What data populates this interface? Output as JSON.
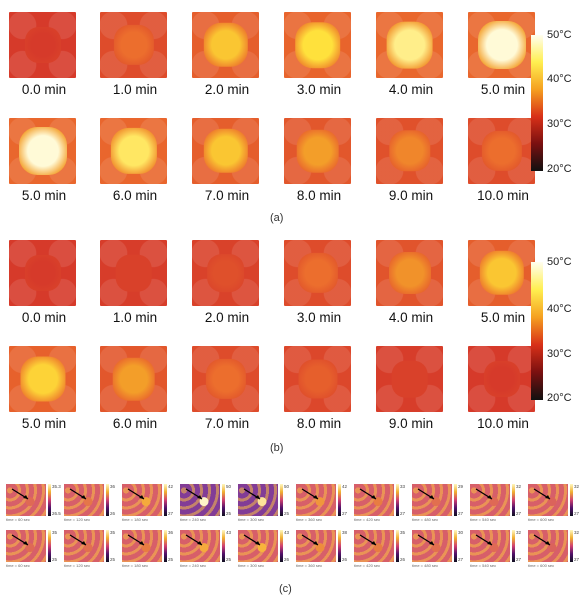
{
  "panel_a": {
    "row1": [
      "0.0 min",
      "1.0 min",
      "2.0 min",
      "3.0 min",
      "4.0 min",
      "5.0 min"
    ],
    "row2": [
      "5.0 min",
      "6.0 min",
      "7.0 min",
      "8.0 min",
      "9.0 min",
      "10.0 min"
    ],
    "intensity_row1": [
      0.0,
      0.35,
      0.7,
      0.8,
      0.9,
      1.0
    ],
    "intensity_row2": [
      1.0,
      0.85,
      0.7,
      0.55,
      0.45,
      0.35
    ],
    "colorbar": [
      "50°C",
      "40°C",
      "30°C",
      "20°C"
    ],
    "caption": "(a)"
  },
  "panel_b": {
    "row1": [
      "0.0 min",
      "1.0 min",
      "2.0 min",
      "3.0 min",
      "4.0 min",
      "5.0 min"
    ],
    "row2": [
      "5.0 min",
      "6.0 min",
      "7.0 min",
      "8.0 min",
      "9.0 min",
      "10.0 min"
    ],
    "intensity_row1": [
      0.0,
      0.05,
      0.15,
      0.35,
      0.5,
      0.7
    ],
    "intensity_row2": [
      0.75,
      0.55,
      0.35,
      0.25,
      0.05,
      0.0
    ],
    "colorbar": [
      "50°C",
      "40°C",
      "30°C",
      "20°C"
    ],
    "caption": "(b)"
  },
  "panel_c": {
    "caption": "(c)",
    "row1": [
      {
        "t": "time = 60 sec",
        "hi": "35.3",
        "lo": "26.5"
      },
      {
        "t": "time = 120 sec",
        "hi": "36",
        "lo": "26"
      },
      {
        "t": "time = 180 sec",
        "hi": "42",
        "lo": "27"
      },
      {
        "t": "time = 240 sec",
        "hi": "50",
        "lo": "25"
      },
      {
        "t": "time = 300 sec",
        "hi": "50",
        "lo": "25"
      },
      {
        "t": "time = 360 sec",
        "hi": "42",
        "lo": "27"
      },
      {
        "t": "time = 420 sec",
        "hi": "33",
        "lo": "27"
      },
      {
        "t": "time = 480 sec",
        "hi": "29",
        "lo": "27"
      },
      {
        "t": "time = 540 sec",
        "hi": "32",
        "lo": "27"
      },
      {
        "t": "time = 600 sec",
        "hi": "32",
        "lo": "27"
      }
    ],
    "row2": [
      {
        "t": "time = 60 sec",
        "hi": "35",
        "lo": "25"
      },
      {
        "t": "time = 120 sec",
        "hi": "35",
        "lo": "25"
      },
      {
        "t": "time = 180 sec",
        "hi": "36",
        "lo": "25"
      },
      {
        "t": "time = 240 sec",
        "hi": "43",
        "lo": "25"
      },
      {
        "t": "time = 300 sec",
        "hi": "43",
        "lo": "26"
      },
      {
        "t": "time = 360 sec",
        "hi": "38",
        "lo": "26"
      },
      {
        "t": "time = 420 sec",
        "hi": "35",
        "lo": "26"
      },
      {
        "t": "time = 480 sec",
        "hi": "30",
        "lo": "27"
      },
      {
        "t": "time = 540 sec",
        "hi": "32",
        "lo": "27"
      },
      {
        "t": "time = 600 sec",
        "hi": "32",
        "lo": "27"
      }
    ],
    "intensity_row1": [
      0.2,
      0.3,
      0.6,
      1.0,
      0.9,
      0.5,
      0.35,
      0.25,
      0.2,
      0.15
    ],
    "intensity_row2": [
      0.2,
      0.25,
      0.35,
      0.6,
      0.65,
      0.45,
      0.35,
      0.25,
      0.2,
      0.15
    ]
  }
}
